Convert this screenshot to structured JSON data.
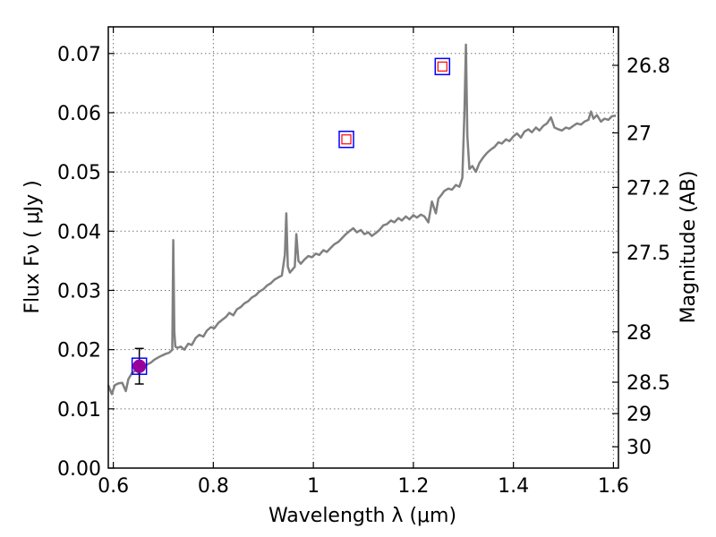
{
  "chart_data": {
    "type": "line",
    "title": "",
    "xlabel": "Wavelength  λ (μm)",
    "ylabel": "Flux  Fν  ( μJy )",
    "y2label": "Magnitude (AB)",
    "xlim": [
      0.59,
      1.61
    ],
    "ylim": [
      0.0,
      0.0745
    ],
    "grid": true,
    "x_ticks": [
      {
        "value": 0.6,
        "label": "0.6"
      },
      {
        "value": 0.8,
        "label": "0.8"
      },
      {
        "value": 1.0,
        "label": "1"
      },
      {
        "value": 1.2,
        "label": "1.2"
      },
      {
        "value": 1.4,
        "label": "1.4"
      },
      {
        "value": 1.6,
        "label": "1.6"
      }
    ],
    "y_ticks": [
      {
        "value": 0.0,
        "label": "0.00"
      },
      {
        "value": 0.01,
        "label": "0.01"
      },
      {
        "value": 0.02,
        "label": "0.02"
      },
      {
        "value": 0.03,
        "label": "0.03"
      },
      {
        "value": 0.04,
        "label": "0.04"
      },
      {
        "value": 0.05,
        "label": "0.05"
      },
      {
        "value": 0.06,
        "label": "0.06"
      },
      {
        "value": 0.07,
        "label": "0.07"
      }
    ],
    "y2_ticks": [
      {
        "flux": 0.068,
        "label": "26.8"
      },
      {
        "flux": 0.0566,
        "label": "27"
      },
      {
        "flux": 0.0474,
        "label": "27.2"
      },
      {
        "flux": 0.0364,
        "label": "27.5"
      },
      {
        "flux": 0.023,
        "label": "28"
      },
      {
        "flux": 0.0145,
        "label": "28.5"
      },
      {
        "flux": 0.0092,
        "label": "29"
      },
      {
        "flux": 0.0036,
        "label": "30"
      }
    ],
    "series": [
      {
        "kind": "spectrum",
        "color": "#808080",
        "x": [
          0.59,
          0.597,
          0.603,
          0.61,
          0.618,
          0.625,
          0.63,
          0.637,
          0.645,
          0.652,
          0.66,
          0.668,
          0.675,
          0.682,
          0.69,
          0.697,
          0.705,
          0.712,
          0.718,
          0.72,
          0.722,
          0.724,
          0.728,
          0.735,
          0.742,
          0.75,
          0.757,
          0.765,
          0.772,
          0.78,
          0.787,
          0.795,
          0.802,
          0.81,
          0.817,
          0.825,
          0.832,
          0.84,
          0.847,
          0.855,
          0.862,
          0.87,
          0.877,
          0.885,
          0.892,
          0.9,
          0.907,
          0.915,
          0.922,
          0.93,
          0.937,
          0.943,
          0.946,
          0.949,
          0.953,
          0.958,
          0.963,
          0.966,
          0.97,
          0.975,
          0.982,
          0.99,
          0.997,
          1.005,
          1.012,
          1.02,
          1.027,
          1.035,
          1.042,
          1.05,
          1.057,
          1.065,
          1.072,
          1.08,
          1.087,
          1.095,
          1.102,
          1.11,
          1.117,
          1.125,
          1.132,
          1.14,
          1.147,
          1.155,
          1.162,
          1.17,
          1.177,
          1.185,
          1.192,
          1.2,
          1.207,
          1.215,
          1.222,
          1.23,
          1.237,
          1.245,
          1.25,
          1.255,
          1.262,
          1.27,
          1.277,
          1.285,
          1.292,
          1.298,
          1.302,
          1.305,
          1.308,
          1.312,
          1.318,
          1.325,
          1.332,
          1.34,
          1.347,
          1.355,
          1.362,
          1.37,
          1.377,
          1.385,
          1.392,
          1.4,
          1.407,
          1.415,
          1.422,
          1.43,
          1.437,
          1.445,
          1.452,
          1.46,
          1.467,
          1.475,
          1.482,
          1.49,
          1.497,
          1.505,
          1.512,
          1.52,
          1.527,
          1.535,
          1.542,
          1.55,
          1.555,
          1.56,
          1.567,
          1.575,
          1.582,
          1.59,
          1.597,
          1.605
        ],
        "y": [
          0.014,
          0.0125,
          0.014,
          0.0143,
          0.0144,
          0.013,
          0.015,
          0.016,
          0.0165,
          0.016,
          0.017,
          0.0175,
          0.0178,
          0.0183,
          0.0187,
          0.019,
          0.0193,
          0.0195,
          0.02,
          0.0385,
          0.023,
          0.0205,
          0.0203,
          0.0205,
          0.02,
          0.021,
          0.0208,
          0.022,
          0.0225,
          0.0222,
          0.0232,
          0.0238,
          0.0236,
          0.0245,
          0.025,
          0.0255,
          0.0262,
          0.0258,
          0.0268,
          0.0272,
          0.0278,
          0.0282,
          0.0288,
          0.0292,
          0.0298,
          0.0302,
          0.0308,
          0.0312,
          0.0318,
          0.0322,
          0.0325,
          0.036,
          0.043,
          0.034,
          0.033,
          0.0335,
          0.034,
          0.0395,
          0.035,
          0.0345,
          0.0352,
          0.0358,
          0.0356,
          0.0362,
          0.036,
          0.0368,
          0.0365,
          0.0372,
          0.0378,
          0.0382,
          0.0388,
          0.0395,
          0.04,
          0.0405,
          0.0398,
          0.0402,
          0.0395,
          0.0398,
          0.0392,
          0.0397,
          0.0402,
          0.041,
          0.0412,
          0.0418,
          0.0415,
          0.0422,
          0.0418,
          0.0425,
          0.042,
          0.0427,
          0.0423,
          0.0428,
          0.0425,
          0.0415,
          0.045,
          0.043,
          0.0455,
          0.046,
          0.0468,
          0.0472,
          0.047,
          0.0478,
          0.0475,
          0.049,
          0.06,
          0.0715,
          0.056,
          0.0505,
          0.051,
          0.05,
          0.0515,
          0.0525,
          0.0532,
          0.0538,
          0.0542,
          0.055,
          0.0548,
          0.0555,
          0.0552,
          0.056,
          0.0565,
          0.0558,
          0.0568,
          0.0572,
          0.0567,
          0.0575,
          0.057,
          0.0578,
          0.0582,
          0.0592,
          0.0575,
          0.0572,
          0.057,
          0.0575,
          0.0573,
          0.0578,
          0.0582,
          0.058,
          0.0585,
          0.0588,
          0.0602,
          0.059,
          0.0596,
          0.0585,
          0.059,
          0.0588,
          0.0594,
          0.0595
        ]
      },
      {
        "kind": "photometry_detection",
        "marker": "filled-circle-with-square",
        "x": [
          0.652
        ],
        "y": [
          0.0172
        ],
        "yerr": [
          0.003
        ],
        "fill": "#990099",
        "edge": "#0000ff"
      },
      {
        "kind": "photometry_model",
        "marker": "open-square-in-square",
        "x": [
          1.066,
          1.258
        ],
        "y": [
          0.0555,
          0.0678
        ],
        "inner": "#ff0000",
        "edge": "#0000ff"
      }
    ]
  }
}
